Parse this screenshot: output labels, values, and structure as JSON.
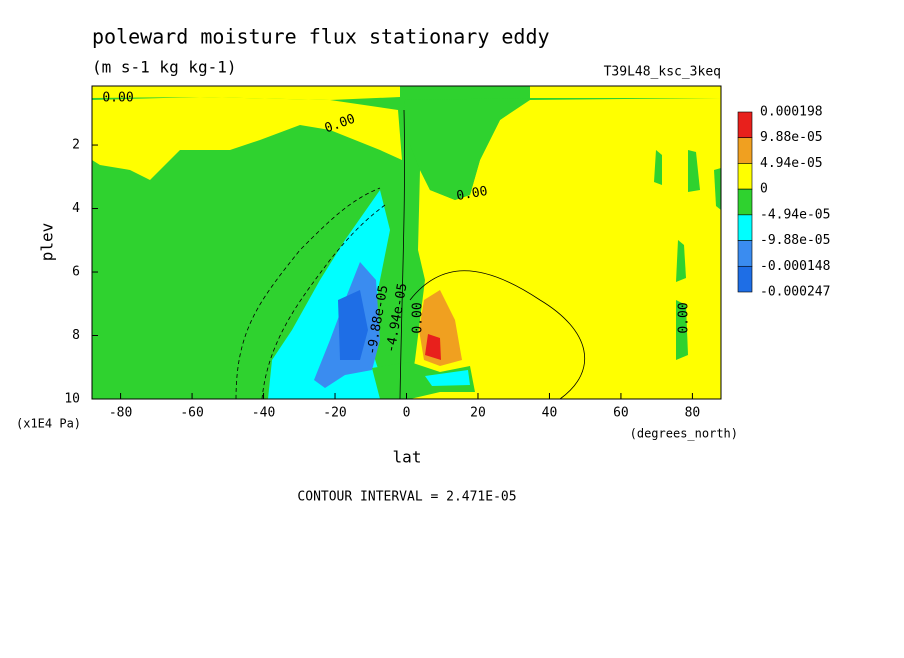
{
  "chart_data": {
    "type": "contour",
    "title": "poleward moisture flux stationary eddy",
    "subtitle": "(m s-1 kg kg-1)",
    "dataset": "T39L48_ksc_3keq",
    "x_label": "lat",
    "x_units": "(degrees_north)",
    "y_label": "plev",
    "y_units": "(x1E4 Pa)",
    "footer": "CONTOUR INTERVAL = 2.471E-05",
    "xlim": [
      -88,
      88
    ],
    "xticks": [
      -80,
      -60,
      -40,
      -20,
      0,
      20,
      40,
      60,
      80
    ],
    "ylim": [
      10,
      0.14
    ],
    "yticks": [
      2,
      4,
      6,
      8,
      10
    ],
    "levels": [
      {
        "value": 0.000198,
        "label": "0.000198"
      },
      {
        "value": 9.88e-05,
        "label": "9.88e-05"
      },
      {
        "value": 4.94e-05,
        "label": "4.94e-05"
      },
      0,
      {
        "value": -4.94e-05,
        "label": "-4.94e-05"
      },
      {
        "value": -9.88e-05,
        "label": "-9.88e-05"
      },
      {
        "value": -0.000148,
        "label": "-0.000148"
      },
      {
        "value": -0.000247,
        "label": "-0.000247"
      }
    ],
    "colors": [
      "#e8201c",
      "#f0a020",
      "#ffff00",
      "#2fd22f",
      "#00ffff",
      "#3a8cf0",
      "#1e6ee6"
    ],
    "contour_labels": [
      "0.00",
      "0.00",
      "0.00",
      "-9.88e-05",
      "-4.94e-05",
      "0.00",
      "0.00"
    ]
  }
}
